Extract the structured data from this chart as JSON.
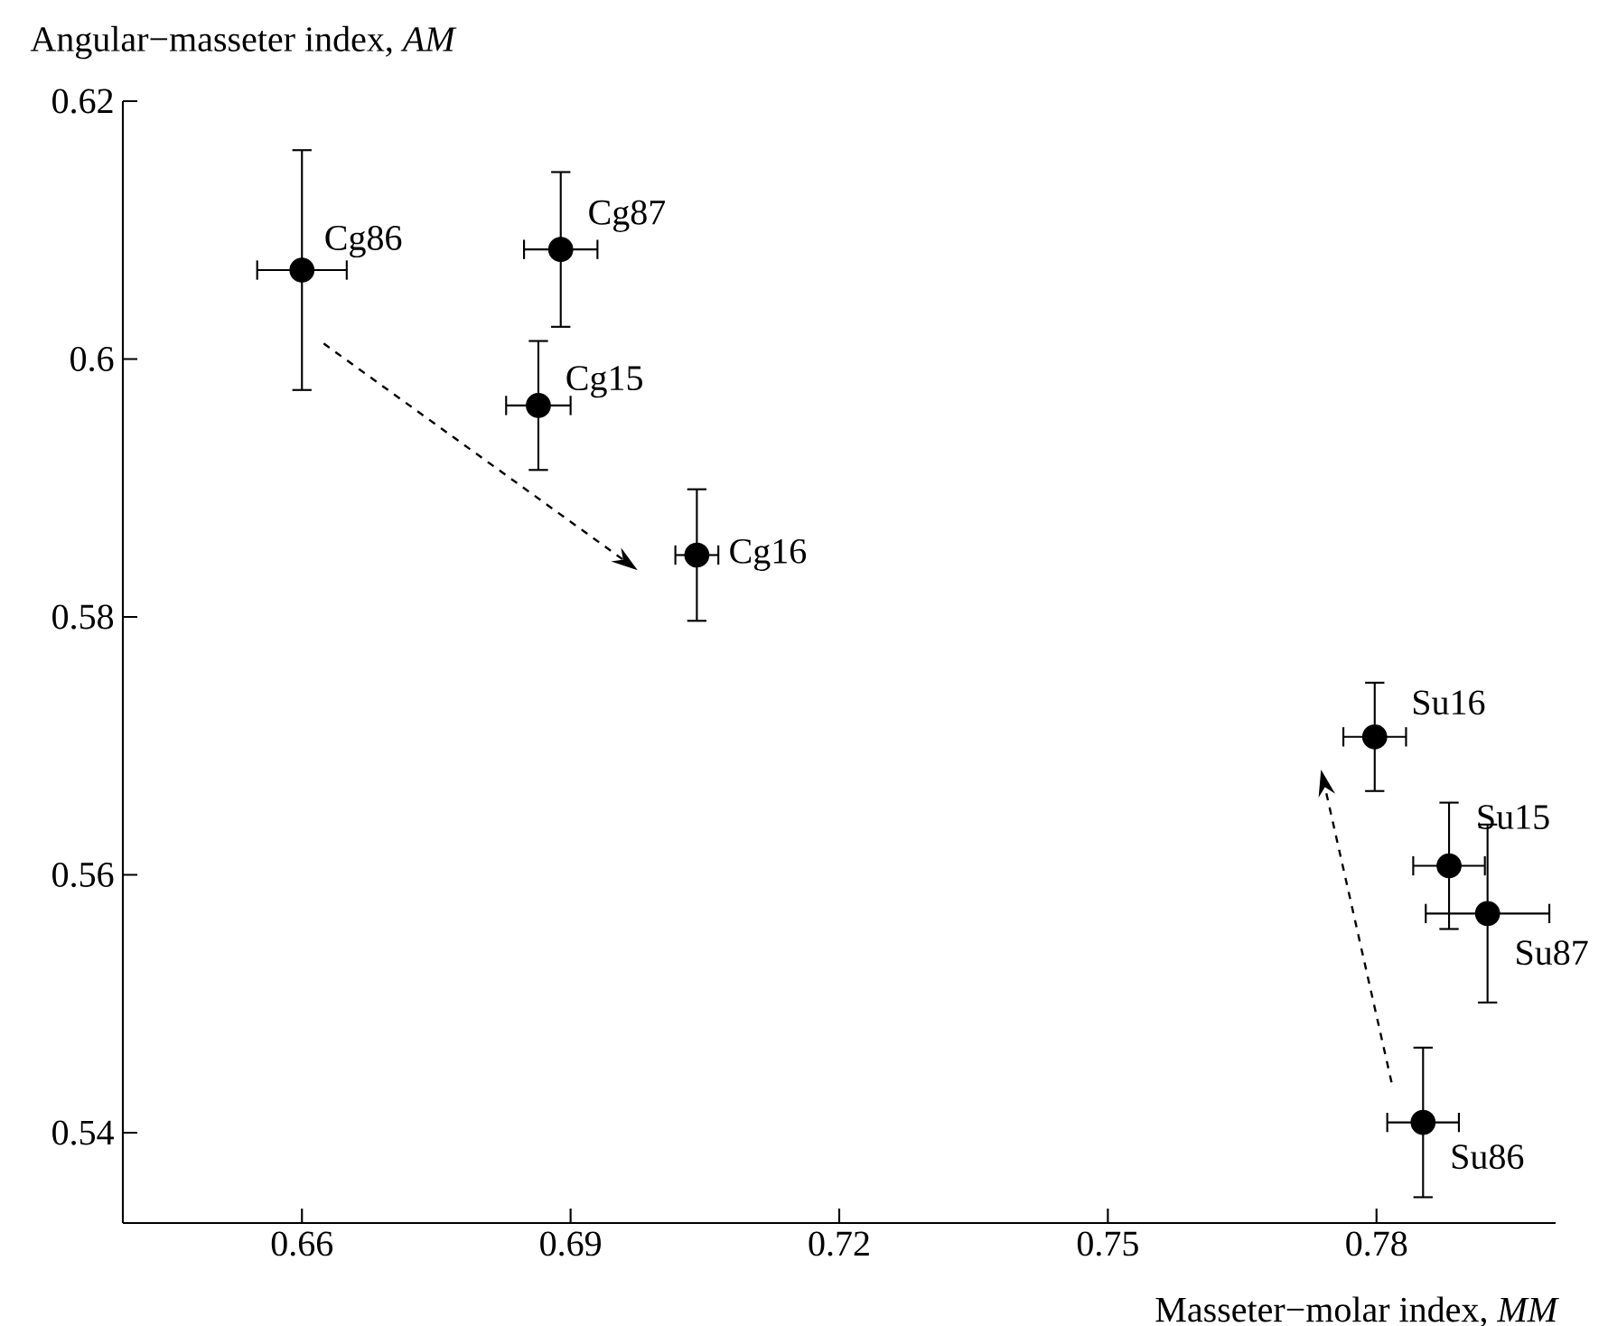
{
  "chart_data": {
    "type": "scatter",
    "xlabel": "Masseter−molar index, *MM*",
    "ylabel": "Angular−masseter index, *AM*",
    "xlim": [
      0.64,
      0.8
    ],
    "ylim": [
      0.533,
      0.62
    ],
    "xticks": [
      0.66,
      0.69,
      0.72,
      0.75,
      0.78
    ],
    "yticks": [
      0.54,
      0.56,
      0.58,
      0.6,
      0.62
    ],
    "grid": false,
    "series": [
      {
        "type": "scatter",
        "color": "#000000",
        "x": [
          0.66,
          0.6889,
          0.6864,
          0.7041,
          0.7798,
          0.7881,
          0.7924,
          0.7852
        ],
        "values": [
          0.6069,
          0.6085,
          0.5964,
          0.5848,
          0.5707,
          0.5607,
          0.557,
          0.5408
        ],
        "errors": [
          0.0093,
          0.006,
          0.005,
          0.0051,
          0.0042,
          0.0049,
          0.0069,
          0.0058
        ],
        "xerrors": [
          0.005,
          0.0041,
          0.0036,
          0.0024,
          0.0035,
          0.004,
          0.0069,
          0.004
        ]
      }
    ],
    "annotations": [
      {
        "text": "Cg86",
        "x": 0.66,
        "y": 0.6069
      },
      {
        "text": "Cg87",
        "x": 0.6889,
        "y": 0.6085
      },
      {
        "text": "Cg15",
        "x": 0.6864,
        "y": 0.5964
      },
      {
        "text": "Cg16",
        "x": 0.7041,
        "y": 0.5848
      },
      {
        "text": "Su16",
        "x": 0.7798,
        "y": 0.5707
      },
      {
        "text": "Su15",
        "x": 0.7881,
        "y": 0.5607
      },
      {
        "text": "Su87",
        "x": 0.7924,
        "y": 0.557
      },
      {
        "text": "Su86",
        "x": 0.7852,
        "y": 0.5408
      }
    ]
  }
}
